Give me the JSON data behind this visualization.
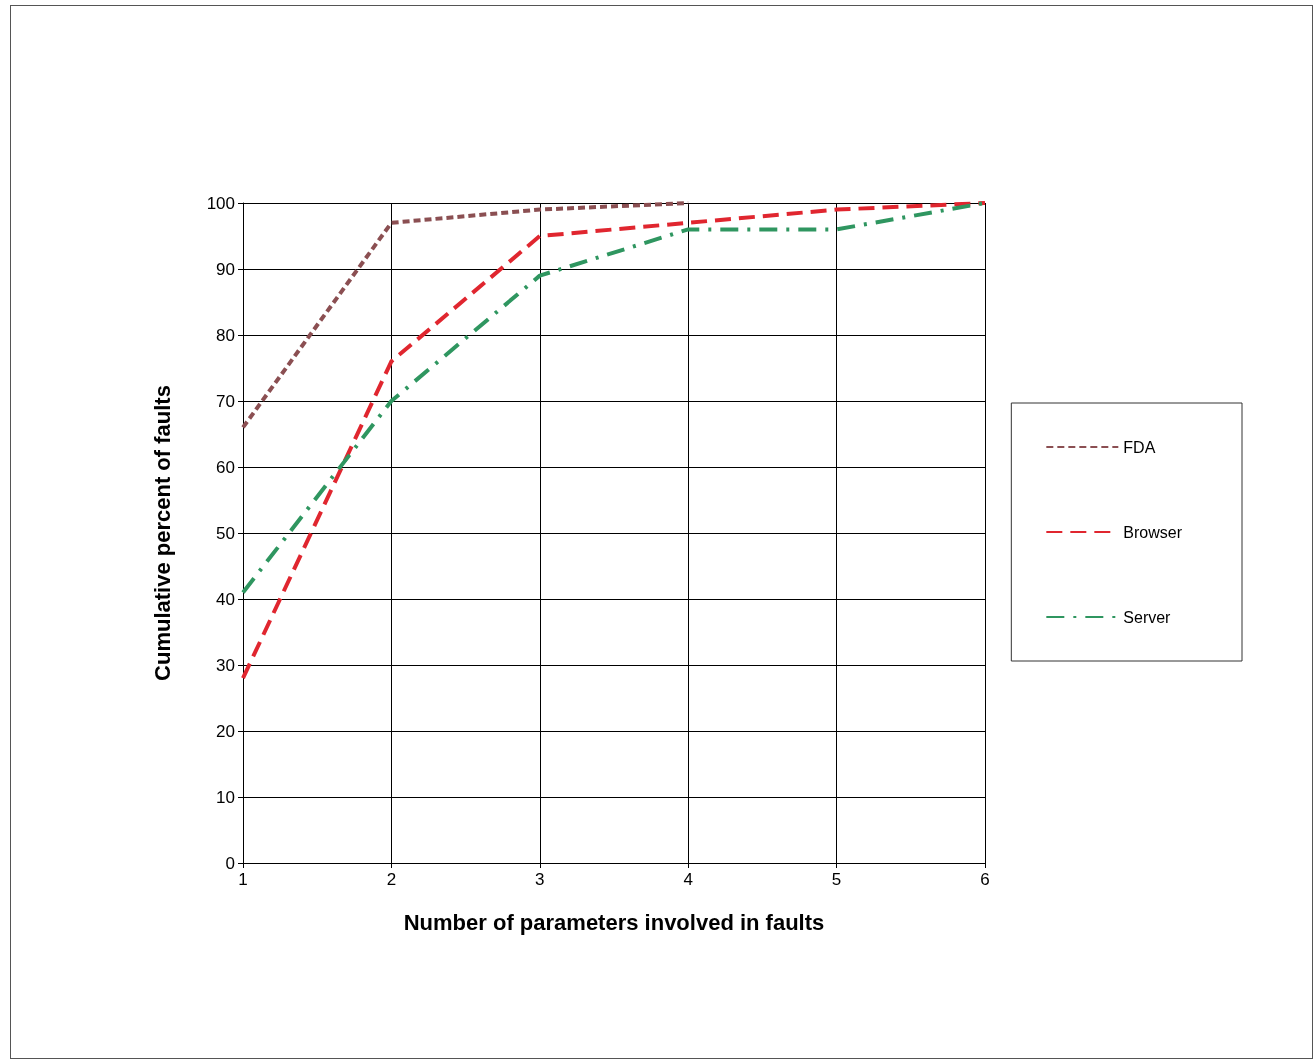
{
  "chart_data": {
    "type": "line",
    "xlabel": "Number of parameters involved in faults",
    "ylabel": "Cumulative percent of faults",
    "series": [
      {
        "name": "FDA",
        "color": "#8b4f52",
        "line_style": "dotted",
        "x": [
          1,
          2,
          3,
          4
        ],
        "values": [
          66,
          97,
          99,
          100
        ]
      },
      {
        "name": "Browser",
        "color": "#e0262f",
        "line_style": "dashed",
        "x": [
          1,
          2,
          3,
          4,
          5,
          6
        ],
        "values": [
          28,
          76,
          95,
          97,
          99,
          100
        ]
      },
      {
        "name": "Server",
        "color": "#2f9660",
        "line_style": "dashdot",
        "x": [
          1,
          2,
          3,
          4,
          5,
          6
        ],
        "values": [
          41,
          70,
          89,
          96,
          96,
          100
        ]
      }
    ],
    "xlim": [
      1,
      6
    ],
    "xticks": [
      1,
      2,
      3,
      4,
      5,
      6
    ],
    "ylim": [
      0,
      100
    ],
    "yticks": [
      0,
      10,
      20,
      30,
      40,
      50,
      60,
      70,
      80,
      90,
      100
    ],
    "grid": true,
    "legend": "right",
    "marker": "none"
  }
}
